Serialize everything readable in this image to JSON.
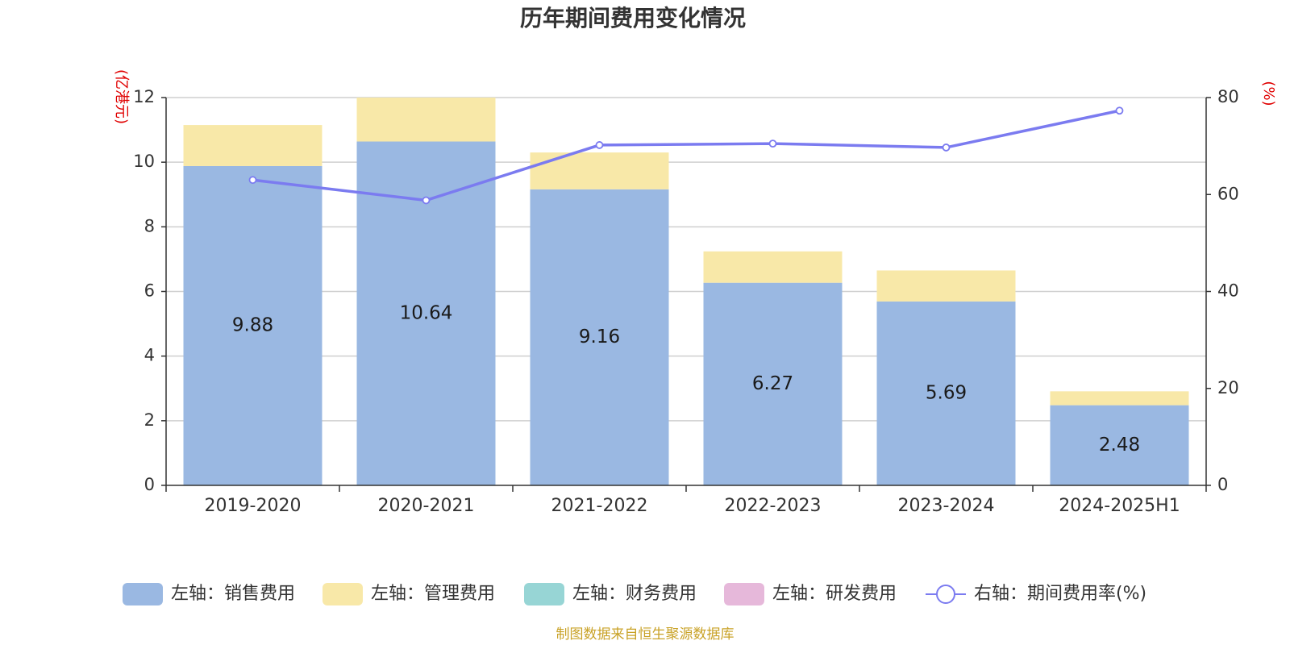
{
  "title": "历年期间费用变化情况",
  "source": "制图数据来自恒生聚源数据库",
  "chart_data": {
    "type": "bar",
    "stacked": true,
    "categories": [
      "2019-2020",
      "2020-2021",
      "2021-2022",
      "2022-2023",
      "2023-2024",
      "2024-2025H1"
    ],
    "left_axis": {
      "unit": "(亿港元)",
      "ylim": [
        0,
        12
      ],
      "ticks": [
        0,
        2,
        4,
        6,
        8,
        10,
        12
      ]
    },
    "right_axis": {
      "unit": "(%)",
      "ylim": [
        0,
        80
      ],
      "ticks": [
        0,
        20,
        40,
        60,
        80
      ]
    },
    "grid": true,
    "legend_position": "bottom",
    "series": [
      {
        "name": "左轴：销售费用",
        "type": "bar",
        "axis": "left",
        "color": "#9ab8e2",
        "values": [
          9.88,
          10.64,
          9.16,
          6.27,
          5.69,
          2.48
        ],
        "labels": [
          "9.88",
          "10.64",
          "9.16",
          "6.27",
          "5.69",
          "2.48"
        ]
      },
      {
        "name": "左轴：管理费用",
        "type": "bar",
        "axis": "left",
        "color": "#f8e8a8",
        "values": [
          1.27,
          1.36,
          1.14,
          0.97,
          0.96,
          0.43
        ]
      },
      {
        "name": "左轴：财务费用",
        "type": "bar",
        "axis": "left",
        "color": "#97d5d5",
        "values": [
          0,
          0,
          0,
          0,
          0,
          0
        ]
      },
      {
        "name": "左轴：研发费用",
        "type": "bar",
        "axis": "left",
        "color": "#e6b8da",
        "values": [
          0,
          0,
          0,
          0,
          0,
          0
        ]
      },
      {
        "name": "右轴：期间费用率(%)",
        "type": "line",
        "axis": "right",
        "color": "#7b7bf0",
        "values": [
          63.0,
          58.8,
          70.2,
          70.5,
          69.7,
          77.3
        ]
      }
    ]
  }
}
